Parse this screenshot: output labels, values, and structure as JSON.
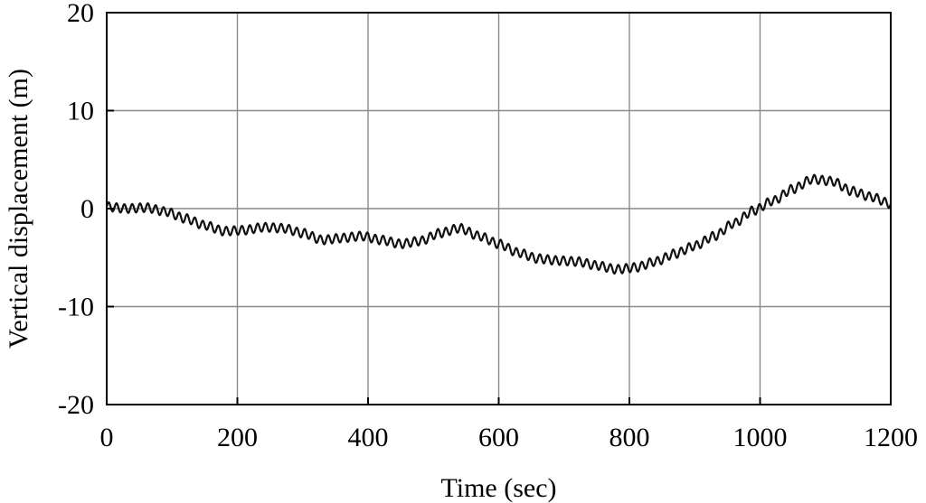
{
  "chart_data": {
    "type": "line",
    "xlabel": "Time (sec)",
    "ylabel": "Vertical displacement (m)",
    "xlim": [
      0,
      1200
    ],
    "ylim": [
      -20,
      20
    ],
    "x_ticks": [
      0,
      200,
      400,
      600,
      800,
      1000,
      1200
    ],
    "y_ticks": [
      20,
      10,
      0,
      -10,
      -20
    ],
    "x_tick_labels": [
      "0",
      "200",
      "400",
      "600",
      "800",
      "1000",
      "1200"
    ],
    "y_tick_labels": [
      "20",
      "10",
      "0",
      "-10",
      "-20"
    ],
    "grid": true,
    "oscillation": {
      "period_sec": 12,
      "amplitude_m": 0.45
    },
    "series": [
      {
        "x": [
          0,
          30,
          60,
          90,
          120,
          150,
          180,
          210,
          240,
          270,
          300,
          330,
          360,
          390,
          420,
          450,
          480,
          510,
          540,
          570,
          600,
          630,
          660,
          690,
          720,
          750,
          780,
          810,
          840,
          870,
          900,
          930,
          960,
          990,
          1020,
          1050,
          1080,
          1110,
          1140,
          1170,
          1200
        ],
        "values": [
          0.2,
          0.0,
          0.1,
          -0.3,
          -1.0,
          -1.7,
          -2.3,
          -2.2,
          -1.9,
          -2.0,
          -2.5,
          -3.2,
          -3.0,
          -2.8,
          -3.2,
          -3.6,
          -3.3,
          -2.5,
          -2.0,
          -2.8,
          -3.6,
          -4.5,
          -5.1,
          -5.3,
          -5.4,
          -5.8,
          -6.2,
          -6.0,
          -5.4,
          -4.6,
          -3.8,
          -2.8,
          -1.5,
          -0.2,
          0.8,
          2.0,
          3.0,
          2.8,
          1.8,
          1.2,
          0.5
        ]
      }
    ]
  }
}
